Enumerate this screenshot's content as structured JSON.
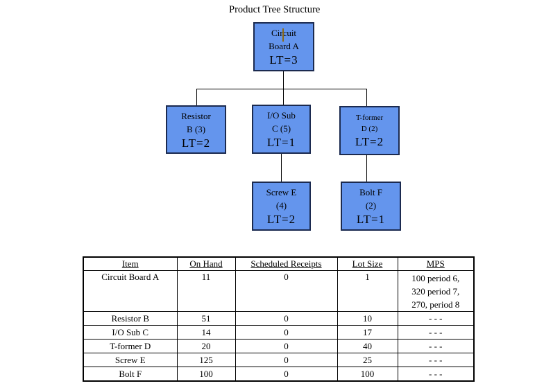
{
  "title": "Product Tree Structure",
  "tree": {
    "nodes": [
      {
        "id": "circuit-board-a",
        "line1": "Circuit",
        "line2": "Board A",
        "lt": "LT=3"
      },
      {
        "id": "resistor-b",
        "line1": "Resistor",
        "line2": "B (3)",
        "lt": "LT=2"
      },
      {
        "id": "io-sub-c",
        "line1": "I/O Sub",
        "line2": "C (5)",
        "lt": "LT=1"
      },
      {
        "id": "t-former-d",
        "line1": "T-former",
        "line2": "D (2)",
        "lt": "LT=2"
      },
      {
        "id": "screw-e",
        "line1": "Screw E",
        "line2": "(4)",
        "lt": "LT=2"
      },
      {
        "id": "bolt-f",
        "line1": "Bolt F",
        "line2": "(2)",
        "lt": "LT=1"
      }
    ]
  },
  "colors": {
    "node_fill": "#6495ED",
    "node_border": "#1B2A4F",
    "caret": "#8B6914",
    "line": "#000000"
  },
  "table": {
    "headers": [
      "Item",
      "On Hand",
      "Scheduled Receipts",
      "Lot Size",
      "MPS"
    ],
    "rows": [
      {
        "item": "Circuit Board A",
        "on_hand": "11",
        "scheduled_receipts": "0",
        "lot_size": "1",
        "mps_lines": [
          "100 period 6,",
          "320 period 7,",
          "270, period 8"
        ]
      },
      {
        "item": "Resistor B",
        "on_hand": "51",
        "scheduled_receipts": "0",
        "lot_size": "10",
        "mps_lines": [
          "- - -"
        ]
      },
      {
        "item": "I/O Sub C",
        "on_hand": "14",
        "scheduled_receipts": "0",
        "lot_size": "17",
        "mps_lines": [
          "- - -"
        ]
      },
      {
        "item": "T-former D",
        "on_hand": "20",
        "scheduled_receipts": "0",
        "lot_size": "40",
        "mps_lines": [
          "- - -"
        ]
      },
      {
        "item": "Screw E",
        "on_hand": "125",
        "scheduled_receipts": "0",
        "lot_size": "25",
        "mps_lines": [
          "- - -"
        ]
      },
      {
        "item": "Bolt F",
        "on_hand": "100",
        "scheduled_receipts": "0",
        "lot_size": "100",
        "mps_lines": [
          "- - -"
        ]
      }
    ]
  }
}
